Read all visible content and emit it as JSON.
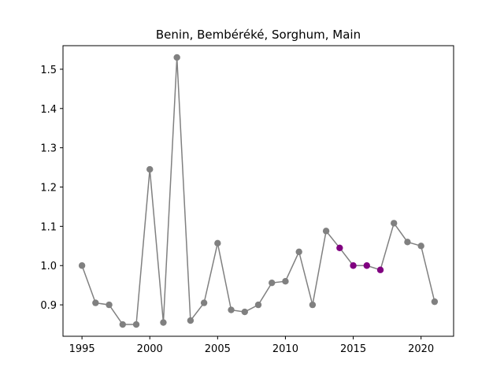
{
  "chart_data": {
    "type": "line",
    "title": "Benin, Bembéréké, Sorghum, Main",
    "xlabel": "",
    "ylabel": "",
    "xlim": [
      1993.6,
      2022.4
    ],
    "ylim": [
      0.82,
      1.56
    ],
    "xticks": [
      1995,
      2000,
      2005,
      2010,
      2015,
      2020
    ],
    "yticks": [
      0.9,
      1.0,
      1.1,
      1.2,
      1.3,
      1.4,
      1.5
    ],
    "ytick_labels": [
      "0.9",
      "1.0",
      "1.1",
      "1.2",
      "1.3",
      "1.4",
      "1.5"
    ],
    "grid": false,
    "legend": "none",
    "line_color": "#808080",
    "series": [
      {
        "x": [
          1995,
          1996,
          1997,
          1998,
          1999,
          2000,
          2001,
          2002,
          2003,
          2004,
          2005,
          2006,
          2007,
          2008,
          2009,
          2010,
          2011,
          2012,
          2013,
          2014,
          2015,
          2016,
          2017,
          2018,
          2019,
          2020,
          2021
        ],
        "values": [
          1.0,
          0.905,
          0.9,
          0.85,
          0.85,
          1.245,
          0.855,
          1.53,
          0.86,
          0.905,
          1.057,
          0.887,
          0.882,
          0.9,
          0.956,
          0.96,
          1.035,
          0.9,
          1.088,
          1.045,
          1.0,
          1.0,
          0.989,
          1.108,
          1.06,
          1.05,
          0.908
        ],
        "point_colors": [
          "#808080",
          "#808080",
          "#808080",
          "#808080",
          "#808080",
          "#808080",
          "#808080",
          "#808080",
          "#808080",
          "#808080",
          "#808080",
          "#808080",
          "#808080",
          "#808080",
          "#808080",
          "#808080",
          "#808080",
          "#808080",
          "#808080",
          "#800080",
          "#800080",
          "#800080",
          "#800080",
          "#808080",
          "#808080",
          "#808080",
          "#808080"
        ]
      }
    ]
  }
}
